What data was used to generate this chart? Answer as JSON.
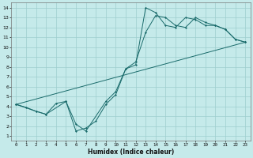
{
  "xlabel": "Humidex (Indice chaleur)",
  "xlim": [
    -0.5,
    23.5
  ],
  "ylim": [
    0.5,
    14.5
  ],
  "xticks": [
    0,
    1,
    2,
    3,
    4,
    5,
    6,
    7,
    8,
    9,
    10,
    11,
    12,
    13,
    14,
    15,
    16,
    17,
    18,
    19,
    20,
    21,
    22,
    23
  ],
  "yticks": [
    1,
    2,
    3,
    4,
    5,
    6,
    7,
    8,
    9,
    10,
    11,
    12,
    13,
    14
  ],
  "bg_color": "#c5eaea",
  "grid_color": "#9ecece",
  "line_color": "#1a6b6b",
  "series1_x": [
    0,
    1,
    2,
    3,
    4,
    5,
    6,
    7,
    8,
    9,
    10,
    11,
    12,
    13,
    14,
    15,
    16,
    17,
    18,
    19,
    20,
    21,
    22,
    23
  ],
  "series1_y": [
    4.2,
    3.9,
    3.5,
    3.2,
    4.3,
    4.5,
    1.5,
    1.8,
    2.5,
    4.2,
    5.2,
    7.8,
    8.2,
    14.0,
    13.5,
    12.2,
    12.0,
    13.0,
    12.8,
    12.2,
    12.2,
    11.8,
    10.8,
    10.5
  ],
  "series2_x": [
    0,
    23
  ],
  "series2_y": [
    4.2,
    10.5
  ],
  "series3_x": [
    0,
    2,
    3,
    5,
    6,
    7,
    9,
    10,
    11,
    12,
    13,
    14,
    15,
    16,
    17,
    18,
    19,
    20,
    21,
    22,
    23
  ],
  "series3_y": [
    4.2,
    3.5,
    3.2,
    4.5,
    2.2,
    1.5,
    4.5,
    5.5,
    7.8,
    8.5,
    11.5,
    13.2,
    13.0,
    12.2,
    12.0,
    13.0,
    12.5,
    12.2,
    11.8,
    10.8,
    10.5
  ]
}
